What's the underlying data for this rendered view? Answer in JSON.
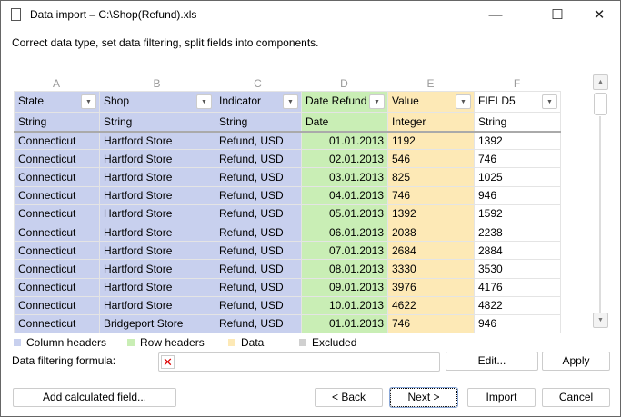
{
  "window": {
    "title": "Data import – C:\\Shop(Refund).xls",
    "minimize": "—",
    "maximize": "☐",
    "close": "✕"
  },
  "description": "Correct data type, set data filtering, split fields into components.",
  "columns": [
    {
      "letter": "A",
      "name": "State",
      "type": "String"
    },
    {
      "letter": "B",
      "name": "Shop",
      "type": "String"
    },
    {
      "letter": "C",
      "name": "Indicator",
      "type": "String"
    },
    {
      "letter": "D",
      "name": "Date Refund",
      "type": "Date"
    },
    {
      "letter": "E",
      "name": "Value",
      "type": "Integer"
    },
    {
      "letter": "F",
      "name": "FIELD5",
      "type": "String"
    }
  ],
  "rows": [
    [
      "Connecticut",
      "Hartford Store",
      "Refund, USD",
      "01.01.2013",
      "1192",
      "1392"
    ],
    [
      "Connecticut",
      "Hartford Store",
      "Refund, USD",
      "02.01.2013",
      "546",
      "746"
    ],
    [
      "Connecticut",
      "Hartford Store",
      "Refund, USD",
      "03.01.2013",
      "825",
      "1025"
    ],
    [
      "Connecticut",
      "Hartford Store",
      "Refund, USD",
      "04.01.2013",
      "746",
      "946"
    ],
    [
      "Connecticut",
      "Hartford Store",
      "Refund, USD",
      "05.01.2013",
      "1392",
      "1592"
    ],
    [
      "Connecticut",
      "Hartford Store",
      "Refund, USD",
      "06.01.2013",
      "2038",
      "2238"
    ],
    [
      "Connecticut",
      "Hartford Store",
      "Refund, USD",
      "07.01.2013",
      "2684",
      "2884"
    ],
    [
      "Connecticut",
      "Hartford Store",
      "Refund, USD",
      "08.01.2013",
      "3330",
      "3530"
    ],
    [
      "Connecticut",
      "Hartford Store",
      "Refund, USD",
      "09.01.2013",
      "3976",
      "4176"
    ],
    [
      "Connecticut",
      "Hartford Store",
      "Refund, USD",
      "10.01.2013",
      "4622",
      "4822"
    ],
    [
      "Connecticut",
      "Bridgeport Store",
      "Refund, USD",
      "01.01.2013",
      "746",
      "946"
    ]
  ],
  "legend": [
    {
      "label": "Column headers",
      "color": "#c8d0ee"
    },
    {
      "label": "Row headers",
      "color": "#c9eeb5"
    },
    {
      "label": "Data",
      "color": "#fde9b6"
    },
    {
      "label": "Excluded",
      "color": "#d0d0d0"
    }
  ],
  "filter": {
    "label": "Data filtering formula:",
    "value": "",
    "edit": "Edit...",
    "apply": "Apply"
  },
  "buttons": {
    "add_calc": "Add calculated field...",
    "back": "< Back",
    "next": "Next >",
    "import": "Import",
    "cancel": "Cancel"
  }
}
